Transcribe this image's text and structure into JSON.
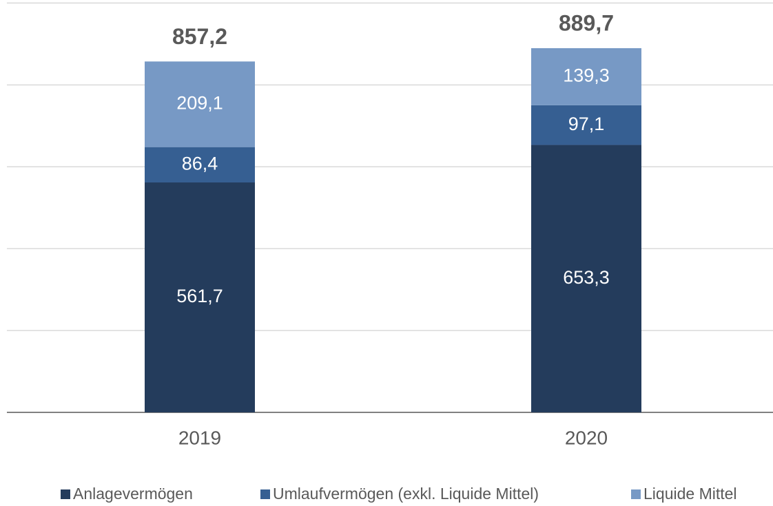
{
  "chart_data": {
    "type": "stacked-bar",
    "categories": [
      "2019",
      "2020"
    ],
    "series": [
      {
        "name": "Anlagevermögen",
        "color": "#243c5c",
        "values": [
          561.7,
          653.3
        ],
        "value_labels": [
          "561,7",
          "653,3"
        ]
      },
      {
        "name": "Umlaufvermögen (exkl. Liquide Mittel)",
        "color": "#365f92",
        "values": [
          86.4,
          97.1
        ],
        "value_labels": [
          "86,4",
          "97,1"
        ]
      },
      {
        "name": "Liquide Mittel",
        "color": "#7799c5",
        "values": [
          209.1,
          139.3
        ],
        "value_labels": [
          "209,1",
          "139,3"
        ]
      }
    ],
    "totals": [
      857.2,
      889.7
    ],
    "total_labels": [
      "857,2",
      "889,7"
    ],
    "ylim": [
      0,
      1000
    ],
    "yticks": [
      0,
      200,
      400,
      600,
      800,
      1000
    ],
    "grid": true,
    "legend": "bottom"
  }
}
